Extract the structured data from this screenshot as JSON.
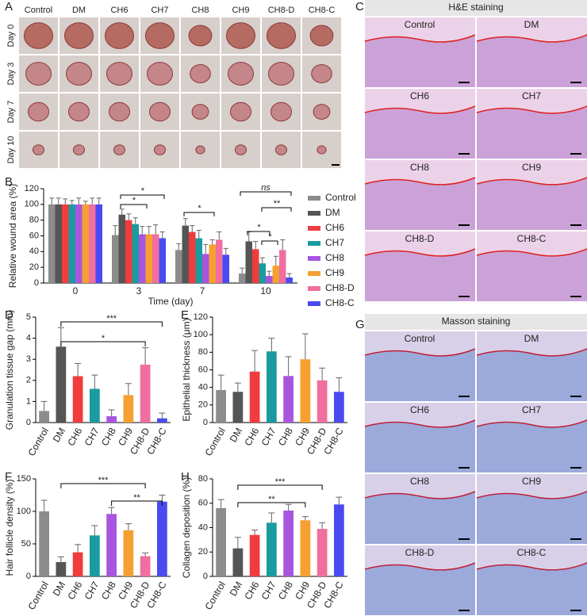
{
  "panel_labels": [
    "A",
    "B",
    "C",
    "D",
    "E",
    "F",
    "G",
    "H"
  ],
  "photos": {
    "groups": [
      "Control",
      "DM",
      "CH6",
      "CH7",
      "CH8",
      "CH9",
      "CH8-D",
      "CH8-C"
    ],
    "days": [
      "Day 0",
      "Day 3",
      "Day 7",
      "Day 10"
    ]
  },
  "he_staining": {
    "title": "H&E staining",
    "labels": [
      "Control",
      "DM",
      "CH6",
      "CH7",
      "CH8",
      "CH9",
      "CH8-D",
      "CH8-C"
    ]
  },
  "masson_staining": {
    "title": "Masson staining",
    "labels": [
      "Control",
      "DM",
      "CH6",
      "CH7",
      "CH8",
      "CH9",
      "CH8-D",
      "CH8-C"
    ]
  },
  "chart_data": [
    {
      "type": "grouped-bar",
      "x_label": "Time (day)",
      "y_label": "Relative wound area (%)",
      "categories": [
        "0",
        "3",
        "7",
        "10"
      ],
      "ylim": [
        0,
        120
      ],
      "yticks": [
        0,
        20,
        40,
        60,
        80,
        100,
        120
      ],
      "legend": "right",
      "series": [
        {
          "name": "Control",
          "color": "#8c8c8c",
          "values": [
            100,
            61,
            42,
            12
          ],
          "errors": [
            8,
            12,
            8,
            7
          ]
        },
        {
          "name": "DM",
          "color": "#555555",
          "values": [
            100,
            87,
            73,
            53
          ],
          "errors": [
            8,
            7,
            9,
            12
          ]
        },
        {
          "name": "CH6",
          "color": "#f03c3c",
          "values": [
            100,
            80,
            65,
            43
          ],
          "errors": [
            7,
            8,
            8,
            10
          ]
        },
        {
          "name": "CH7",
          "color": "#1a9ba0",
          "values": [
            100,
            75,
            57,
            25
          ],
          "errors": [
            5,
            8,
            10,
            7
          ]
        },
        {
          "name": "CH8",
          "color": "#a855e0",
          "values": [
            100,
            62,
            37,
            9
          ],
          "errors": [
            8,
            10,
            12,
            6
          ]
        },
        {
          "name": "CH9",
          "color": "#f5a030",
          "values": [
            100,
            62,
            49,
            22
          ],
          "errors": [
            4,
            10,
            6,
            12
          ]
        },
        {
          "name": "CH8-D",
          "color": "#f06ea0",
          "values": [
            100,
            62,
            55,
            42
          ],
          "errors": [
            8,
            12,
            10,
            13
          ]
        },
        {
          "name": "CH8-C",
          "color": "#4a4af0",
          "values": [
            100,
            57,
            36,
            7
          ],
          "errors": [
            8,
            8,
            8,
            5
          ]
        }
      ],
      "annotations": [
        "*",
        "*",
        "*",
        "ns",
        "**",
        "*",
        "*"
      ]
    },
    {
      "type": "bar",
      "y_label": "Granulation tissue gap (mm)",
      "categories": [
        "Control",
        "DM",
        "CH6",
        "CH7",
        "CH8",
        "CH9",
        "CH8-D",
        "CH8-C"
      ],
      "values": [
        0.55,
        3.6,
        2.2,
        1.6,
        0.3,
        1.3,
        2.75,
        0.2
      ],
      "errors": [
        0.45,
        0.9,
        0.6,
        0.65,
        0.3,
        0.55,
        0.8,
        0.25
      ],
      "colors": [
        "#8c8c8c",
        "#555555",
        "#f03c3c",
        "#1a9ba0",
        "#a855e0",
        "#f5a030",
        "#f06ea0",
        "#4a4af0"
      ],
      "ylim": [
        0,
        5
      ],
      "yticks": [
        0,
        1,
        2,
        3,
        4,
        5
      ],
      "annotations": [
        "***",
        "*"
      ]
    },
    {
      "type": "bar",
      "y_label": "Epithelial thickness (μm)",
      "categories": [
        "Control",
        "DM",
        "CH6",
        "CH7",
        "CH8",
        "CH9",
        "CH8-D",
        "CH8-C"
      ],
      "values": [
        37,
        35,
        58,
        81,
        53,
        72,
        48,
        35
      ],
      "errors": [
        17,
        10,
        24,
        15,
        22,
        29,
        14,
        16
      ],
      "colors": [
        "#8c8c8c",
        "#555555",
        "#f03c3c",
        "#1a9ba0",
        "#a855e0",
        "#f5a030",
        "#f06ea0",
        "#4a4af0"
      ],
      "ylim": [
        0,
        120
      ],
      "yticks": [
        0,
        20,
        40,
        60,
        80,
        100,
        120
      ],
      "annotations": []
    },
    {
      "type": "bar",
      "y_label": "Hair follicle density (%)",
      "categories": [
        "Control",
        "DM",
        "CH6",
        "CH7",
        "CH8",
        "CH9",
        "CH8-D",
        "CH8-C"
      ],
      "values": [
        100,
        22,
        37,
        63,
        96,
        71,
        31,
        115
      ],
      "errors": [
        17,
        8,
        12,
        15,
        10,
        10,
        5,
        10
      ],
      "colors": [
        "#8c8c8c",
        "#555555",
        "#f03c3c",
        "#1a9ba0",
        "#a855e0",
        "#f5a030",
        "#f06ea0",
        "#4a4af0"
      ],
      "ylim": [
        0,
        150
      ],
      "yticks": [
        0,
        50,
        100,
        150
      ],
      "annotations": [
        "***",
        "**"
      ]
    },
    {
      "type": "bar",
      "y_label": "Collagen deposition (%)",
      "categories": [
        "Control",
        "DM",
        "CH6",
        "CH7",
        "CH8",
        "CH9",
        "CH8-D",
        "CH8-C"
      ],
      "values": [
        56,
        23,
        34,
        44,
        54,
        46,
        39,
        59
      ],
      "errors": [
        7,
        9,
        4,
        8,
        5,
        3,
        5,
        6
      ],
      "colors": [
        "#8c8c8c",
        "#555555",
        "#f03c3c",
        "#1a9ba0",
        "#a855e0",
        "#f5a030",
        "#f06ea0",
        "#4a4af0"
      ],
      "ylim": [
        0,
        80
      ],
      "yticks": [
        0,
        20,
        40,
        60,
        80
      ],
      "annotations": [
        "***",
        "**"
      ]
    }
  ]
}
